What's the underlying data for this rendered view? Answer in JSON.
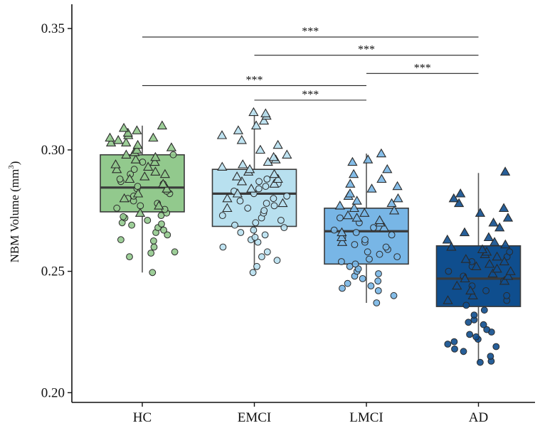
{
  "chart_data": {
    "type": "box",
    "ylabel": "NBM Volume (mm³)",
    "ylabel_text": "NBM Volume (mm",
    "ylabel_sup": "3",
    "ylabel_close": ")",
    "ylim": [
      0.196,
      0.36
    ],
    "yticks": [
      0.2,
      0.25,
      0.3,
      0.35
    ],
    "ytick_labels": [
      "0.20",
      "0.25",
      "0.30",
      "0.35"
    ],
    "categories": [
      "HC",
      "EMCI",
      "LMCI",
      "AD"
    ],
    "colors": {
      "HC": "#92c98d",
      "EMCI": "#b8e0ef",
      "LMCI": "#78b6e6",
      "AD": "#0f4e8e",
      "box_line": "#3a3a3a",
      "whisker": "#555555"
    },
    "boxes": [
      {
        "category": "HC",
        "q1": 0.2745,
        "median": 0.2845,
        "q3": 0.298,
        "whisker_low": 0.2495,
        "whisker_high": 0.31
      },
      {
        "category": "EMCI",
        "q1": 0.2685,
        "median": 0.282,
        "q3": 0.292,
        "whisker_low": 0.2495,
        "whisker_high": 0.3155
      },
      {
        "category": "LMCI",
        "q1": 0.253,
        "median": 0.2665,
        "q3": 0.276,
        "whisker_low": 0.237,
        "whisker_high": 0.2985
      },
      {
        "category": "AD",
        "q1": 0.2355,
        "median": 0.247,
        "q3": 0.2605,
        "whisker_low": 0.2125,
        "whisker_high": 0.2905
      }
    ],
    "points": {
      "HC": {
        "circle": [
          0.2495,
          0.256,
          0.2575,
          0.258,
          0.26,
          0.2625,
          0.263,
          0.265,
          0.266,
          0.267,
          0.268,
          0.269,
          0.2695,
          0.27,
          0.271,
          0.272,
          0.2725,
          0.273,
          0.274,
          0.2755,
          0.276,
          0.277,
          0.278,
          0.279,
          0.28,
          0.281,
          0.282,
          0.283,
          0.284,
          0.285,
          0.286,
          0.287,
          0.288,
          0.29,
          0.292,
          0.295,
          0.298
        ],
        "triangle": [
          0.274,
          0.277,
          0.28,
          0.282,
          0.284,
          0.286,
          0.288,
          0.289,
          0.29,
          0.291,
          0.292,
          0.293,
          0.294,
          0.295,
          0.296,
          0.297,
          0.298,
          0.299,
          0.3,
          0.3,
          0.301,
          0.302,
          0.303,
          0.303,
          0.304,
          0.305,
          0.305,
          0.306,
          0.307,
          0.308,
          0.309,
          0.31
        ]
      },
      "EMCI": {
        "circle": [
          0.2495,
          0.252,
          0.2545,
          0.256,
          0.258,
          0.26,
          0.262,
          0.263,
          0.264,
          0.265,
          0.266,
          0.267,
          0.268,
          0.269,
          0.27,
          0.271,
          0.272,
          0.273,
          0.274,
          0.275,
          0.276,
          0.277,
          0.278,
          0.279,
          0.28,
          0.281,
          0.282,
          0.283,
          0.284,
          0.285,
          0.286,
          0.287,
          0.288
        ],
        "triangle": [
          0.276,
          0.278,
          0.28,
          0.282,
          0.284,
          0.286,
          0.287,
          0.288,
          0.289,
          0.29,
          0.291,
          0.292,
          0.293,
          0.294,
          0.295,
          0.296,
          0.297,
          0.298,
          0.3,
          0.302,
          0.304,
          0.306,
          0.308,
          0.31,
          0.312,
          0.314,
          0.315,
          0.3155
        ]
      },
      "LMCI": {
        "circle": [
          0.237,
          0.24,
          0.242,
          0.243,
          0.244,
          0.245,
          0.246,
          0.247,
          0.248,
          0.249,
          0.25,
          0.251,
          0.252,
          0.253,
          0.254,
          0.255,
          0.256,
          0.257,
          0.258,
          0.259,
          0.26,
          0.261,
          0.262,
          0.263,
          0.264,
          0.265,
          0.266,
          0.267,
          0.268,
          0.27,
          0.272
        ],
        "triangle": [
          0.262,
          0.264,
          0.266,
          0.268,
          0.27,
          0.271,
          0.272,
          0.273,
          0.274,
          0.275,
          0.276,
          0.277,
          0.278,
          0.279,
          0.28,
          0.281,
          0.282,
          0.284,
          0.285,
          0.286,
          0.288,
          0.29,
          0.292,
          0.295,
          0.296,
          0.2985
        ]
      },
      "AD": {
        "circle": [
          0.2125,
          0.213,
          0.215,
          0.217,
          0.218,
          0.219,
          0.22,
          0.221,
          0.222,
          0.223,
          0.224,
          0.225,
          0.226,
          0.228,
          0.229,
          0.23,
          0.232,
          0.234,
          0.236,
          0.238,
          0.24,
          0.242,
          0.244,
          0.246,
          0.248,
          0.25,
          0.252,
          0.254,
          0.256,
          0.258
        ],
        "triangle": [
          0.238,
          0.24,
          0.242,
          0.244,
          0.246,
          0.247,
          0.248,
          0.249,
          0.25,
          0.251,
          0.252,
          0.253,
          0.254,
          0.255,
          0.256,
          0.257,
          0.258,
          0.259,
          0.26,
          0.261,
          0.262,
          0.263,
          0.264,
          0.266,
          0.268,
          0.27,
          0.272,
          0.274,
          0.276,
          0.278,
          0.28,
          0.282,
          0.291
        ]
      }
    },
    "significance": [
      {
        "from": "HC",
        "to": "AD",
        "y": 0.3465,
        "label": "***"
      },
      {
        "from": "EMCI",
        "to": "AD",
        "y": 0.339,
        "label": "***"
      },
      {
        "from": "LMCI",
        "to": "AD",
        "y": 0.3315,
        "label": "***"
      },
      {
        "from": "HC",
        "to": "LMCI",
        "y": 0.3265,
        "label": "***"
      },
      {
        "from": "EMCI",
        "to": "LMCI",
        "y": 0.3205,
        "label": "***"
      }
    ]
  }
}
